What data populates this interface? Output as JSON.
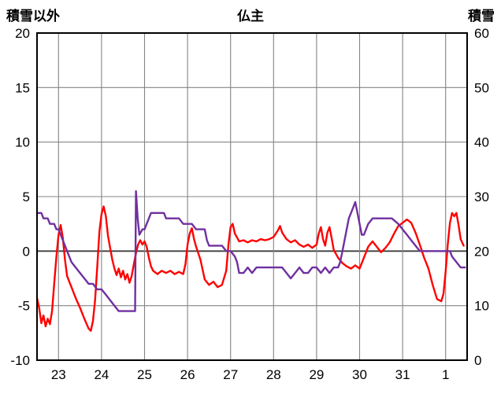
{
  "chart_data": {
    "type": "line",
    "title": "仏主",
    "left_axis_label": "積雪以外",
    "right_axis_label": "積雪",
    "left_ylim": [
      -10,
      20
    ],
    "right_ylim": [
      0,
      60
    ],
    "x_range": [
      22.5,
      32.5
    ],
    "grid": true,
    "legend": "none",
    "x_ticks": [
      {
        "x": 23,
        "label": "23"
      },
      {
        "x": 24,
        "label": "24"
      },
      {
        "x": 25,
        "label": "25"
      },
      {
        "x": 26,
        "label": "26"
      },
      {
        "x": 27,
        "label": "27"
      },
      {
        "x": 28,
        "label": "28"
      },
      {
        "x": 29,
        "label": "29"
      },
      {
        "x": 30,
        "label": "30"
      },
      {
        "x": 31,
        "label": "31"
      },
      {
        "x": 32,
        "label": "1"
      }
    ],
    "left_ticks": [
      20,
      15,
      10,
      5,
      0,
      -5,
      -10
    ],
    "right_ticks": [
      60,
      50,
      40,
      30,
      20,
      10,
      0
    ],
    "colors": {
      "red_series": "#ff0000",
      "purple_series": "#7030a0",
      "grid": "#848484",
      "zero": "#3f3f3f",
      "border": "#000000",
      "text": "#000000"
    },
    "series": [
      {
        "name": "non-snow-left-axis",
        "axis": "left",
        "color_key": "red_series",
        "points": [
          [
            22.5,
            -4.3
          ],
          [
            22.55,
            -5.2
          ],
          [
            22.6,
            -6.6
          ],
          [
            22.65,
            -5.9
          ],
          [
            22.7,
            -6.9
          ],
          [
            22.75,
            -6.2
          ],
          [
            22.8,
            -6.7
          ],
          [
            22.85,
            -5.5
          ],
          [
            22.9,
            -3.0
          ],
          [
            22.95,
            -0.5
          ],
          [
            23.0,
            1.5
          ],
          [
            23.05,
            2.4
          ],
          [
            23.1,
            1.2
          ],
          [
            23.15,
            -0.8
          ],
          [
            23.2,
            -2.3
          ],
          [
            23.3,
            -3.3
          ],
          [
            23.4,
            -4.3
          ],
          [
            23.5,
            -5.2
          ],
          [
            23.6,
            -6.2
          ],
          [
            23.7,
            -7.1
          ],
          [
            23.75,
            -7.3
          ],
          [
            23.8,
            -6.4
          ],
          [
            23.85,
            -4.5
          ],
          [
            23.9,
            -1.5
          ],
          [
            23.95,
            1.8
          ],
          [
            24.0,
            3.4
          ],
          [
            24.05,
            4.1
          ],
          [
            24.1,
            3.2
          ],
          [
            24.15,
            1.4
          ],
          [
            24.2,
            0.3
          ],
          [
            24.25,
            -0.8
          ],
          [
            24.3,
            -1.6
          ],
          [
            24.35,
            -2.2
          ],
          [
            24.4,
            -1.6
          ],
          [
            24.45,
            -2.4
          ],
          [
            24.5,
            -1.8
          ],
          [
            24.55,
            -2.6
          ],
          [
            24.6,
            -2.1
          ],
          [
            24.65,
            -2.9
          ],
          [
            24.7,
            -2.3
          ],
          [
            24.75,
            -1.2
          ],
          [
            24.8,
            -0.2
          ],
          [
            24.85,
            0.6
          ],
          [
            24.9,
            1.0
          ],
          [
            24.95,
            0.6
          ],
          [
            25.0,
            0.9
          ],
          [
            25.05,
            0.4
          ],
          [
            25.1,
            -0.6
          ],
          [
            25.15,
            -1.4
          ],
          [
            25.2,
            -1.8
          ],
          [
            25.3,
            -2.1
          ],
          [
            25.4,
            -1.8
          ],
          [
            25.5,
            -2.0
          ],
          [
            25.6,
            -1.8
          ],
          [
            25.7,
            -2.1
          ],
          [
            25.8,
            -1.9
          ],
          [
            25.9,
            -2.1
          ],
          [
            25.95,
            -1.2
          ],
          [
            26.0,
            0.6
          ],
          [
            26.05,
            1.6
          ],
          [
            26.1,
            2.1
          ],
          [
            26.15,
            1.1
          ],
          [
            26.2,
            0.4
          ],
          [
            26.3,
            -0.8
          ],
          [
            26.4,
            -2.6
          ],
          [
            26.5,
            -3.1
          ],
          [
            26.6,
            -2.8
          ],
          [
            26.7,
            -3.3
          ],
          [
            26.8,
            -3.1
          ],
          [
            26.9,
            -1.8
          ],
          [
            26.95,
            0.6
          ],
          [
            27.0,
            2.2
          ],
          [
            27.05,
            2.5
          ],
          [
            27.1,
            1.6
          ],
          [
            27.2,
            0.9
          ],
          [
            27.3,
            1.0
          ],
          [
            27.4,
            0.8
          ],
          [
            27.5,
            1.0
          ],
          [
            27.6,
            0.9
          ],
          [
            27.7,
            1.1
          ],
          [
            27.8,
            1.0
          ],
          [
            27.9,
            1.1
          ],
          [
            28.0,
            1.3
          ],
          [
            28.1,
            1.9
          ],
          [
            28.15,
            2.3
          ],
          [
            28.2,
            1.7
          ],
          [
            28.3,
            1.1
          ],
          [
            28.4,
            0.8
          ],
          [
            28.5,
            1.0
          ],
          [
            28.6,
            0.6
          ],
          [
            28.7,
            0.4
          ],
          [
            28.8,
            0.6
          ],
          [
            28.9,
            0.3
          ],
          [
            29.0,
            0.6
          ],
          [
            29.05,
            1.6
          ],
          [
            29.1,
            2.2
          ],
          [
            29.15,
            1.1
          ],
          [
            29.2,
            0.5
          ],
          [
            29.25,
            1.7
          ],
          [
            29.3,
            2.2
          ],
          [
            29.35,
            1.2
          ],
          [
            29.4,
            0.1
          ],
          [
            29.5,
            -0.6
          ],
          [
            29.6,
            -1.1
          ],
          [
            29.7,
            -1.4
          ],
          [
            29.8,
            -1.6
          ],
          [
            29.9,
            -1.3
          ],
          [
            30.0,
            -1.6
          ],
          [
            30.1,
            -0.6
          ],
          [
            30.2,
            0.4
          ],
          [
            30.3,
            0.9
          ],
          [
            30.4,
            0.4
          ],
          [
            30.5,
            -0.1
          ],
          [
            30.6,
            0.3
          ],
          [
            30.7,
            0.8
          ],
          [
            30.8,
            1.6
          ],
          [
            30.9,
            2.3
          ],
          [
            31.0,
            2.6
          ],
          [
            31.1,
            2.9
          ],
          [
            31.2,
            2.6
          ],
          [
            31.3,
            1.7
          ],
          [
            31.4,
            0.6
          ],
          [
            31.5,
            -0.6
          ],
          [
            31.6,
            -1.6
          ],
          [
            31.7,
            -3.1
          ],
          [
            31.8,
            -4.4
          ],
          [
            31.9,
            -4.6
          ],
          [
            31.95,
            -3.9
          ],
          [
            32.0,
            -1.9
          ],
          [
            32.05,
            0.6
          ],
          [
            32.1,
            2.6
          ],
          [
            32.15,
            3.5
          ],
          [
            32.2,
            3.2
          ],
          [
            32.25,
            3.5
          ],
          [
            32.3,
            2.4
          ],
          [
            32.35,
            1.1
          ],
          [
            32.42,
            0.5
          ]
        ]
      },
      {
        "name": "snow-depth-right-axis",
        "axis": "right",
        "color_key": "purple_series",
        "points": [
          [
            22.5,
            27
          ],
          [
            22.6,
            27
          ],
          [
            22.65,
            26
          ],
          [
            22.75,
            26
          ],
          [
            22.8,
            25
          ],
          [
            22.9,
            25
          ],
          [
            22.95,
            24
          ],
          [
            23.0,
            24
          ],
          [
            23.05,
            23
          ],
          [
            23.1,
            22
          ],
          [
            23.15,
            21
          ],
          [
            23.2,
            20
          ],
          [
            23.3,
            18
          ],
          [
            23.4,
            17
          ],
          [
            23.5,
            16
          ],
          [
            23.6,
            15
          ],
          [
            23.7,
            14
          ],
          [
            23.8,
            14
          ],
          [
            23.9,
            13
          ],
          [
            24.0,
            13
          ],
          [
            24.1,
            12
          ],
          [
            24.2,
            11
          ],
          [
            24.3,
            10
          ],
          [
            24.4,
            9
          ],
          [
            24.55,
            9
          ],
          [
            24.7,
            9
          ],
          [
            24.78,
            9
          ],
          [
            24.8,
            31
          ],
          [
            24.84,
            26
          ],
          [
            24.88,
            23
          ],
          [
            24.95,
            24
          ],
          [
            25.0,
            24
          ],
          [
            25.05,
            25
          ],
          [
            25.1,
            26
          ],
          [
            25.15,
            27
          ],
          [
            25.25,
            27
          ],
          [
            25.35,
            27
          ],
          [
            25.45,
            27
          ],
          [
            25.5,
            26
          ],
          [
            25.6,
            26
          ],
          [
            25.7,
            26
          ],
          [
            25.8,
            26
          ],
          [
            25.9,
            25
          ],
          [
            26.0,
            25
          ],
          [
            26.1,
            25
          ],
          [
            26.2,
            24
          ],
          [
            26.3,
            24
          ],
          [
            26.4,
            24
          ],
          [
            26.45,
            22
          ],
          [
            26.5,
            21
          ],
          [
            26.6,
            21
          ],
          [
            26.7,
            21
          ],
          [
            26.8,
            21
          ],
          [
            26.9,
            20
          ],
          [
            27.0,
            20
          ],
          [
            27.1,
            19
          ],
          [
            27.15,
            18
          ],
          [
            27.2,
            16
          ],
          [
            27.3,
            16
          ],
          [
            27.4,
            17
          ],
          [
            27.5,
            16
          ],
          [
            27.6,
            17
          ],
          [
            27.7,
            17
          ],
          [
            27.8,
            17
          ],
          [
            27.9,
            17
          ],
          [
            28.0,
            17
          ],
          [
            28.1,
            17
          ],
          [
            28.2,
            17
          ],
          [
            28.3,
            16
          ],
          [
            28.4,
            15
          ],
          [
            28.5,
            16
          ],
          [
            28.6,
            17
          ],
          [
            28.7,
            16
          ],
          [
            28.8,
            16
          ],
          [
            28.9,
            17
          ],
          [
            29.0,
            17
          ],
          [
            29.1,
            16
          ],
          [
            29.2,
            17
          ],
          [
            29.3,
            16
          ],
          [
            29.4,
            17
          ],
          [
            29.5,
            17
          ],
          [
            29.55,
            18
          ],
          [
            29.6,
            20
          ],
          [
            29.65,
            22
          ],
          [
            29.7,
            24
          ],
          [
            29.75,
            26
          ],
          [
            29.8,
            27
          ],
          [
            29.85,
            28
          ],
          [
            29.9,
            29
          ],
          [
            29.95,
            27
          ],
          [
            30.0,
            25
          ],
          [
            30.05,
            23
          ],
          [
            30.1,
            23
          ],
          [
            30.15,
            24
          ],
          [
            30.2,
            25
          ],
          [
            30.3,
            26
          ],
          [
            30.45,
            26
          ],
          [
            30.6,
            26
          ],
          [
            30.75,
            26
          ],
          [
            30.9,
            25
          ],
          [
            31.0,
            24
          ],
          [
            31.1,
            23
          ],
          [
            31.2,
            22
          ],
          [
            31.3,
            21
          ],
          [
            31.4,
            20
          ],
          [
            31.5,
            20
          ],
          [
            31.7,
            20
          ],
          [
            31.9,
            20
          ],
          [
            32.05,
            20
          ],
          [
            32.1,
            20
          ],
          [
            32.15,
            19
          ],
          [
            32.25,
            18
          ],
          [
            32.35,
            17
          ],
          [
            32.45,
            17
          ]
        ]
      }
    ]
  }
}
